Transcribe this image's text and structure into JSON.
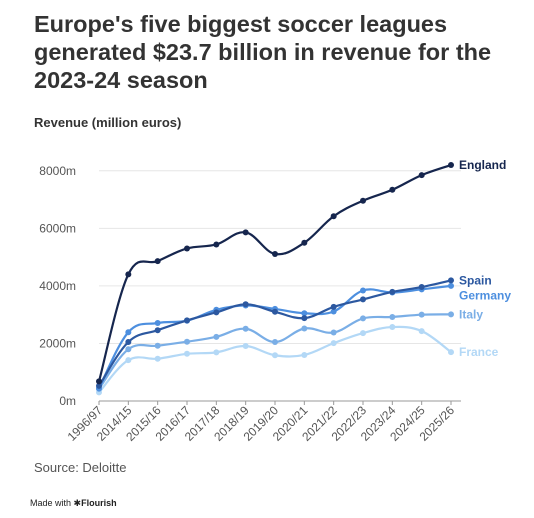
{
  "chart_data": {
    "type": "line",
    "title": "Europe's five biggest soccer leagues generated $23.7 billion in revenue for the 2023-24 season",
    "ylabel": "Revenue (million euros)",
    "xlabel": "",
    "x": [
      "1996/97",
      "2014/15",
      "2015/16",
      "2016/17",
      "2017/18",
      "2018/19",
      "2019/20",
      "2020/21",
      "2021/22",
      "2022/23",
      "2023/24",
      "2024/25",
      "2025/26"
    ],
    "y_ticks": [
      0,
      2000,
      4000,
      6000,
      8000
    ],
    "y_tick_labels": [
      "0m",
      "2000m",
      "4000m",
      "6000m",
      "8000m"
    ],
    "ylim": [
      0,
      9000
    ],
    "grid": true,
    "legend": "labels at line ends",
    "series": [
      {
        "name": "England",
        "color": "#16264e",
        "values": [
          680,
          4400,
          4860,
          5300,
          5440,
          5860,
          5110,
          5500,
          6420,
          6960,
          7340,
          7850,
          8200
        ]
      },
      {
        "name": "Spain",
        "color": "#2c58a0",
        "values": [
          525,
          2050,
          2460,
          2800,
          3080,
          3360,
          3100,
          2880,
          3270,
          3530,
          3790,
          3960,
          4190
        ]
      },
      {
        "name": "Germany",
        "color": "#4d8fdf",
        "values": [
          440,
          2390,
          2710,
          2790,
          3170,
          3320,
          3200,
          3050,
          3110,
          3840,
          3770,
          3880,
          4000
        ]
      },
      {
        "name": "Italy",
        "color": "#7aaee6",
        "values": [
          420,
          1800,
          1920,
          2060,
          2230,
          2510,
          2050,
          2520,
          2380,
          2870,
          2920,
          3000,
          3010
        ]
      },
      {
        "name": "France",
        "color": "#b3d8f6",
        "values": [
          300,
          1420,
          1470,
          1640,
          1690,
          1910,
          1590,
          1600,
          2010,
          2360,
          2570,
          2430,
          1700
        ]
      }
    ]
  },
  "source": "Source: Deloitte",
  "credit": {
    "prefix": "Made with",
    "brand": "Flourish"
  }
}
